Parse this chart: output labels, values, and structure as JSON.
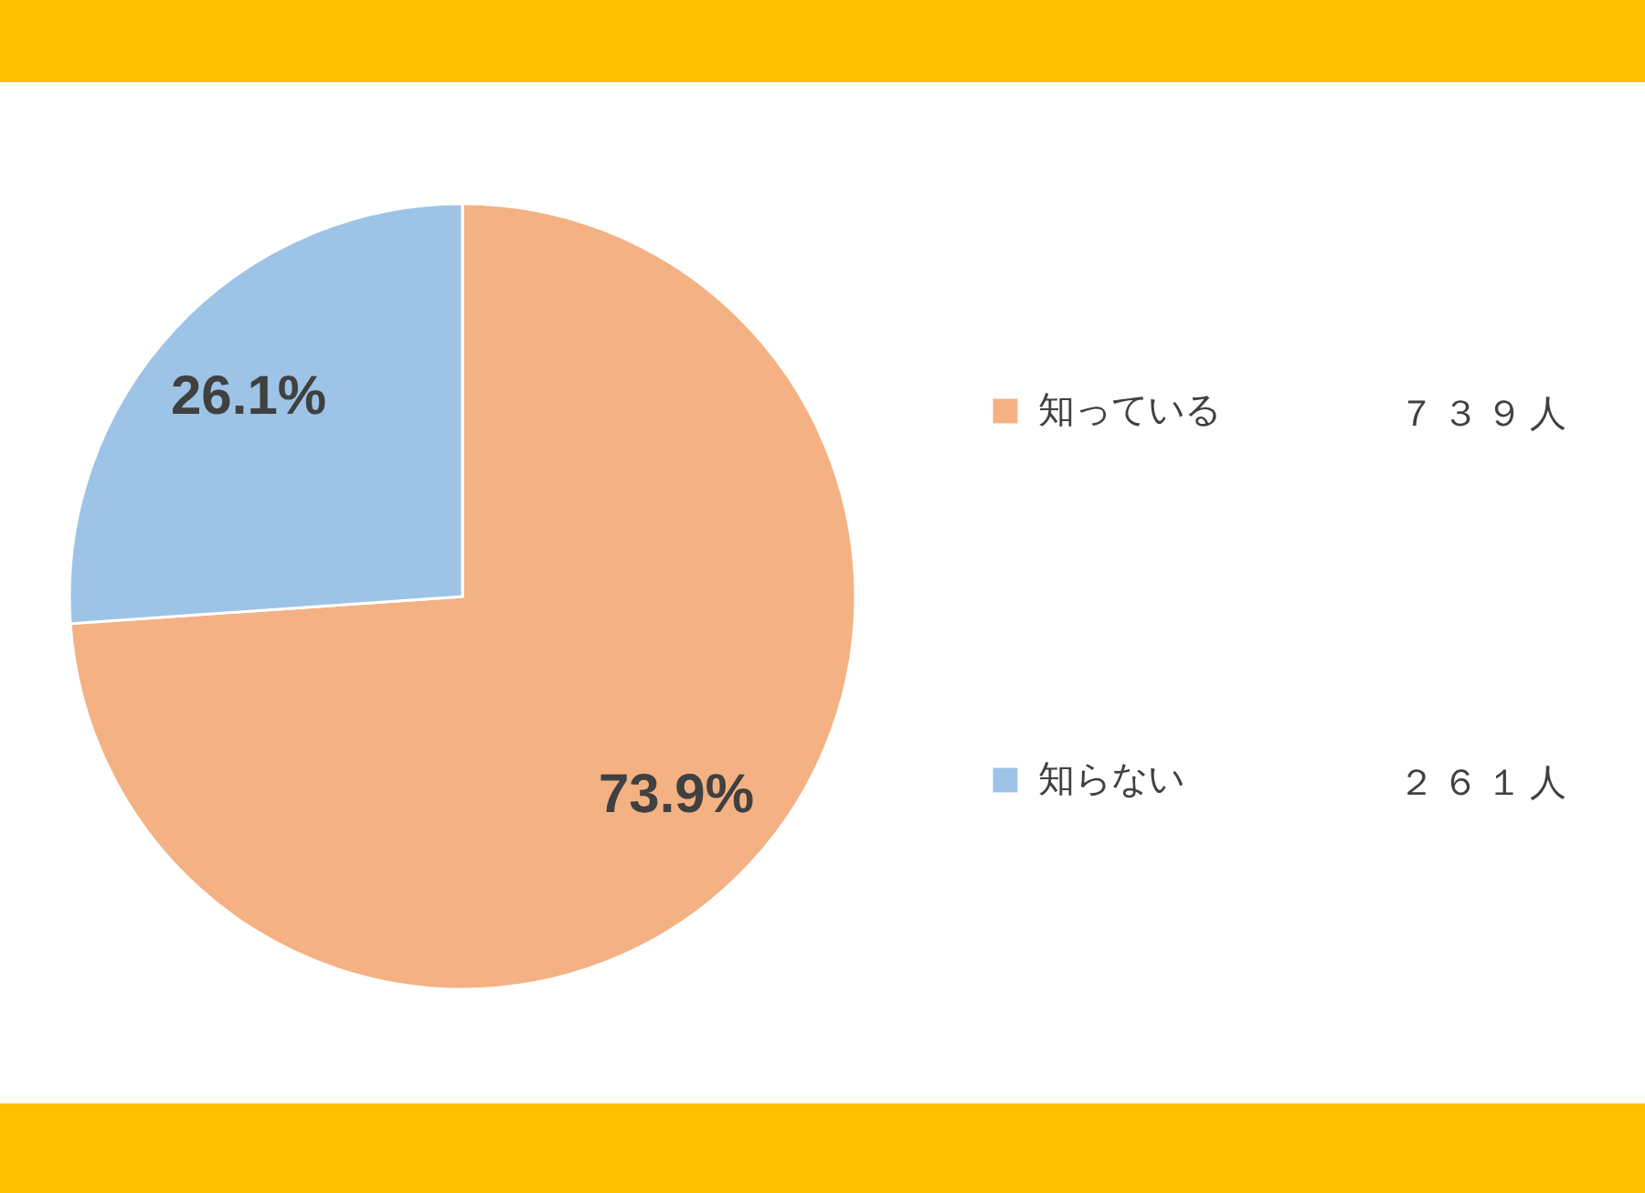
{
  "chart_data": {
    "type": "pie",
    "categories": [
      "知っている",
      "知らない"
    ],
    "values": [
      73.9,
      26.1
    ],
    "colors": [
      "#f4b183",
      "#9dc3e6"
    ],
    "value_labels": [
      "73.9%",
      "26.1%"
    ],
    "annotations": [
      "７３９人",
      "２６１人"
    ],
    "legend": "right"
  }
}
